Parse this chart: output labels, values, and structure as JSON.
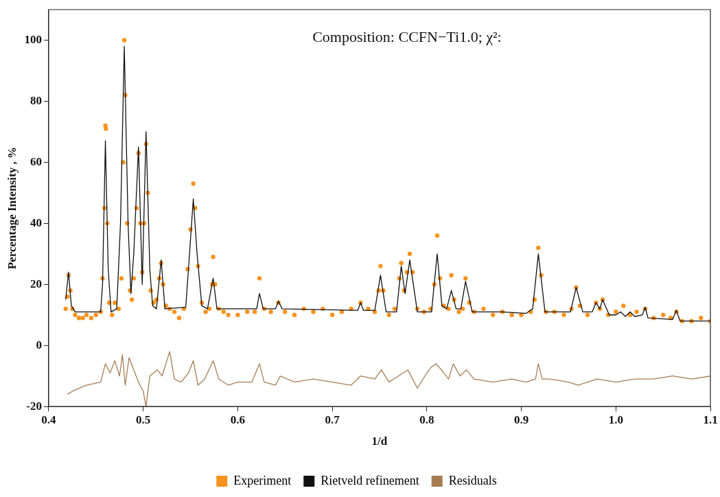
{
  "chart_data": {
    "type": "line",
    "title": "Composition: CCFN−Ti1.0; χ²:",
    "xlabel": "1/d",
    "ylabel": "Percentage Intensity , %",
    "xlim": [
      0.4,
      1.1
    ],
    "xticks": [
      0.4,
      0.5,
      0.6,
      0.7,
      0.8,
      0.9,
      {
        "value": 1,
        "label": "1.0"
      },
      1.1
    ],
    "ylim": [
      -20,
      110
    ],
    "yticks": [
      -20,
      0,
      20,
      40,
      60,
      80,
      100
    ],
    "grid": false,
    "legend": "bottom",
    "line_style": "solid",
    "series": [
      {
        "name": "Experiment",
        "type": "scatter",
        "marker": "circle",
        "color": "#f7931e",
        "x": [
          0.418,
          0.42,
          0.421,
          0.423,
          0.425,
          0.428,
          0.432,
          0.436,
          0.44,
          0.445,
          0.45,
          0.455,
          0.457,
          0.459,
          0.46,
          0.4605,
          0.462,
          0.464,
          0.467,
          0.47,
          0.474,
          0.477,
          0.479,
          0.48,
          0.481,
          0.483,
          0.486,
          0.488,
          0.49,
          0.493,
          0.495,
          0.497,
          0.499,
          0.501,
          0.503,
          0.505,
          0.508,
          0.511,
          0.514,
          0.517,
          0.519,
          0.521,
          0.524,
          0.528,
          0.533,
          0.538,
          0.543,
          0.547,
          0.55,
          0.553,
          0.555,
          0.558,
          0.562,
          0.566,
          0.57,
          0.573,
          0.574,
          0.576,
          0.58,
          0.585,
          0.59,
          0.6,
          0.61,
          0.618,
          0.623,
          0.628,
          0.635,
          0.643,
          0.65,
          0.66,
          0.67,
          0.68,
          0.69,
          0.7,
          0.71,
          0.72,
          0.73,
          0.738,
          0.745,
          0.749,
          0.751,
          0.754,
          0.76,
          0.766,
          0.771,
          0.773,
          0.776,
          0.779,
          0.782,
          0.785,
          0.79,
          0.797,
          0.804,
          0.808,
          0.811,
          0.814,
          0.818,
          0.823,
          0.826,
          0.829,
          0.834,
          0.838,
          0.841,
          0.845,
          0.85,
          0.86,
          0.87,
          0.88,
          0.89,
          0.9,
          0.91,
          0.914,
          0.918,
          0.921,
          0.926,
          0.935,
          0.945,
          0.953,
          0.958,
          0.962,
          0.97,
          0.979,
          0.983,
          0.986,
          0.992,
          1.0,
          1.008,
          1.015,
          1.022,
          1.031,
          1.04,
          1.05,
          1.058,
          1.064,
          1.07,
          1.08,
          1.09,
          1.1
        ],
        "values": [
          12,
          16,
          23,
          18,
          12,
          10,
          9,
          9,
          10,
          9,
          10,
          11,
          22,
          45,
          72,
          71,
          40,
          14,
          10,
          14,
          12,
          22,
          60,
          100,
          82,
          40,
          18,
          15,
          22,
          45,
          63,
          40,
          24,
          40,
          66,
          50,
          18,
          14,
          15,
          22,
          27,
          20,
          13,
          12,
          11,
          9,
          12,
          25,
          38,
          53,
          45,
          26,
          14,
          11,
          12,
          20,
          29,
          20,
          12,
          11,
          10,
          10,
          11,
          11,
          22,
          12,
          11,
          14,
          11,
          10,
          12,
          11,
          12,
          10,
          11,
          12,
          14,
          12,
          11,
          18,
          26,
          18,
          10,
          12,
          22,
          27,
          18,
          24,
          30,
          24,
          12,
          11,
          12,
          20,
          36,
          22,
          13,
          12,
          23,
          15,
          11,
          12,
          22,
          14,
          11,
          12,
          10,
          11,
          10,
          10,
          11,
          15,
          32,
          23,
          11,
          11,
          10,
          12,
          19,
          13,
          10,
          14,
          12,
          15,
          10,
          11,
          13,
          10,
          11,
          12,
          9,
          10,
          9,
          11,
          8,
          8,
          9,
          8
        ]
      },
      {
        "name": "Rietveld refinement",
        "color": "#111111",
        "x": [
          0.418,
          0.421,
          0.424,
          0.428,
          0.455,
          0.457,
          0.46,
          0.463,
          0.466,
          0.472,
          0.476,
          0.48,
          0.484,
          0.487,
          0.49,
          0.495,
          0.499,
          0.503,
          0.507,
          0.51,
          0.514,
          0.519,
          0.523,
          0.545,
          0.549,
          0.553,
          0.557,
          0.562,
          0.568,
          0.574,
          0.578,
          0.62,
          0.623,
          0.627,
          0.64,
          0.643,
          0.647,
          0.727,
          0.73,
          0.733,
          0.745,
          0.751,
          0.757,
          0.768,
          0.773,
          0.777,
          0.782,
          0.79,
          0.805,
          0.811,
          0.816,
          0.821,
          0.826,
          0.831,
          0.836,
          0.841,
          0.848,
          0.88,
          0.905,
          0.912,
          0.918,
          0.925,
          0.94,
          0.952,
          0.958,
          0.965,
          0.975,
          0.979,
          0.983,
          0.986,
          0.993,
          1.0,
          1.005,
          1.01,
          1.015,
          1.02,
          1.028,
          1.031,
          1.034,
          1.06,
          1.064,
          1.068,
          1.1
        ],
        "values": [
          15,
          24,
          13,
          11,
          11,
          20,
          67,
          25,
          11,
          12,
          40,
          98,
          40,
          17,
          30,
          65,
          20,
          70,
          25,
          13,
          12,
          28,
          12,
          12.5,
          30,
          48,
          30,
          13,
          12,
          22,
          12,
          12,
          17,
          12,
          12,
          14.5,
          12,
          11.5,
          14,
          11.5,
          11.5,
          23,
          11,
          11,
          26,
          17,
          28,
          11,
          11,
          30,
          13,
          12,
          18,
          12,
          12,
          21,
          11,
          11,
          10.5,
          12,
          30,
          11,
          11,
          11,
          19,
          11,
          11,
          14,
          12,
          15,
          10,
          10,
          11,
          9.5,
          11,
          9.5,
          10,
          12.5,
          9,
          8.5,
          11.5,
          8,
          8
        ]
      },
      {
        "name": "Residuals",
        "color": "#a67c52",
        "x": [
          0.42,
          0.425,
          0.44,
          0.455,
          0.46,
          0.465,
          0.47,
          0.475,
          0.478,
          0.481,
          0.485,
          0.49,
          0.495,
          0.5,
          0.503,
          0.507,
          0.515,
          0.52,
          0.528,
          0.533,
          0.54,
          0.548,
          0.553,
          0.558,
          0.565,
          0.574,
          0.58,
          0.59,
          0.6,
          0.615,
          0.623,
          0.628,
          0.64,
          0.645,
          0.66,
          0.68,
          0.7,
          0.72,
          0.73,
          0.745,
          0.752,
          0.76,
          0.77,
          0.78,
          0.79,
          0.8,
          0.805,
          0.81,
          0.818,
          0.823,
          0.828,
          0.835,
          0.842,
          0.85,
          0.87,
          0.89,
          0.905,
          0.915,
          0.918,
          0.922,
          0.93,
          0.95,
          0.96,
          0.98,
          1.0,
          1.02,
          1.04,
          1.06,
          1.08,
          1.1
        ],
        "values": [
          -16,
          -15,
          -13,
          -12,
          -6,
          -9,
          -5,
          -10,
          -3,
          -13,
          -4,
          -8,
          -12,
          -15,
          -20,
          -10,
          -8,
          -10,
          -2,
          -11,
          -12,
          -9,
          -5,
          -13,
          -11,
          -5,
          -11,
          -13,
          -12,
          -12,
          -6,
          -12,
          -13,
          -10,
          -12,
          -11,
          -12,
          -13,
          -10,
          -11,
          -8,
          -12,
          -10,
          -8,
          -14,
          -9,
          -7,
          -6,
          -9,
          -11,
          -6,
          -10,
          -8,
          -11,
          -12,
          -11,
          -12,
          -11,
          -6,
          -11,
          -11,
          -12,
          -13,
          -11,
          -12,
          -11,
          -11,
          -10,
          -11,
          -10
        ]
      }
    ]
  }
}
